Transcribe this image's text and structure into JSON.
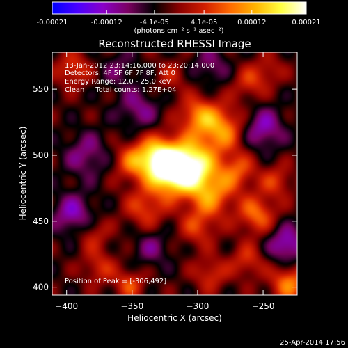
{
  "chart_data": {
    "type": "heatmap",
    "title": "Reconstructed RHESSI Image",
    "xlabel": "Heliocentric X (arcsec)",
    "ylabel": "Heliocentric Y (arcsec)",
    "xlim": [
      -411,
      -224
    ],
    "ylim": [
      394,
      578
    ],
    "xticks": [
      -400,
      -350,
      -300,
      -250
    ],
    "yticks": [
      400,
      450,
      500,
      550
    ],
    "colorbar": {
      "min": -0.00021,
      "max": 0.00021,
      "ticks": [
        {
          "value": -0.00021,
          "label": "-0.00021"
        },
        {
          "value": -0.00012,
          "label": "-0.00012"
        },
        {
          "value": -4.1e-05,
          "label": "-4.1e-05"
        },
        {
          "value": 4.1e-05,
          "label": "4.1e-05"
        },
        {
          "value": 0.00012,
          "label": "0.00012"
        },
        {
          "value": 0.00021,
          "label": "0.00021"
        }
      ],
      "units_label": "(photons cm⁻² s⁻¹ asec⁻²)",
      "colors": [
        "#0000ff",
        "#4a00ff",
        "#8a00c8",
        "#7a0060",
        "#000000",
        "#8a0000",
        "#d21e00",
        "#ff6a00",
        "#ffb400",
        "#ffff40",
        "#ffffff"
      ]
    },
    "peak": {
      "x": -306,
      "y": 492
    },
    "sources": [
      {
        "x": -306,
        "y": 492,
        "amp": 1.0,
        "sigma": 13
      },
      {
        "x": -330,
        "y": 498,
        "amp": 0.8,
        "sigma": 11
      },
      {
        "x": -322,
        "y": 484,
        "amp": 0.55,
        "sigma": 11
      },
      {
        "x": -282,
        "y": 520,
        "amp": 0.55,
        "sigma": 12
      },
      {
        "x": -300,
        "y": 530,
        "amp": 0.45,
        "sigma": 10
      },
      {
        "x": -350,
        "y": 495,
        "amp": 0.4,
        "sigma": 10
      },
      {
        "x": -290,
        "y": 470,
        "amp": 0.5,
        "sigma": 12
      },
      {
        "x": -270,
        "y": 488,
        "amp": 0.38,
        "sigma": 10
      },
      {
        "x": -255,
        "y": 455,
        "amp": 0.45,
        "sigma": 10
      },
      {
        "x": -340,
        "y": 460,
        "amp": 0.35,
        "sigma": 11
      },
      {
        "x": -300,
        "y": 445,
        "amp": 0.3,
        "sigma": 10
      },
      {
        "x": -380,
        "y": 440,
        "amp": 0.25,
        "sigma": 9
      },
      {
        "x": -375,
        "y": 415,
        "amp": 0.28,
        "sigma": 9
      },
      {
        "x": -352,
        "y": 402,
        "amp": 0.35,
        "sigma": 8
      },
      {
        "x": -230,
        "y": 403,
        "amp": 0.5,
        "sigma": 10
      },
      {
        "x": -262,
        "y": 420,
        "amp": 0.3,
        "sigma": 9
      },
      {
        "x": -290,
        "y": 410,
        "amp": 0.3,
        "sigma": 9
      },
      {
        "x": -240,
        "y": 480,
        "amp": 0.3,
        "sigma": 9
      },
      {
        "x": -260,
        "y": 555,
        "amp": 0.3,
        "sigma": 9
      },
      {
        "x": -395,
        "y": 565,
        "amp": 0.35,
        "sigma": 9
      },
      {
        "x": -320,
        "y": 560,
        "amp": 0.2,
        "sigma": 9
      },
      {
        "x": -245,
        "y": 565,
        "amp": 0.2,
        "sigma": 8
      },
      {
        "x": -385,
        "y": 500,
        "amp": -0.3,
        "sigma": 12
      },
      {
        "x": -395,
        "y": 455,
        "amp": -0.4,
        "sigma": 11
      },
      {
        "x": -345,
        "y": 535,
        "amp": -0.3,
        "sigma": 11
      },
      {
        "x": -250,
        "y": 520,
        "amp": -0.4,
        "sigma": 11
      },
      {
        "x": -232,
        "y": 432,
        "amp": -0.45,
        "sigma": 10
      },
      {
        "x": -335,
        "y": 430,
        "amp": -0.25,
        "sigma": 10
      },
      {
        "x": -290,
        "y": 568,
        "amp": -0.25,
        "sigma": 10
      },
      {
        "x": -360,
        "y": 565,
        "amp": -0.2,
        "sigma": 10
      }
    ]
  },
  "annotations": {
    "time": "13-Jan-2012 23:14:16.000 to 23:20:14.000",
    "detectors": "Detectors: 4F 5F 6F 7F 8F, Att 0",
    "energy": "Energy Range: 12.0 - 25.0 keV",
    "clean": "Clean     Total counts: 1.27E+04",
    "peak": "Position of Peak = [-306,492]"
  },
  "footer": {
    "date": "25-Apr-2014 17:56"
  }
}
